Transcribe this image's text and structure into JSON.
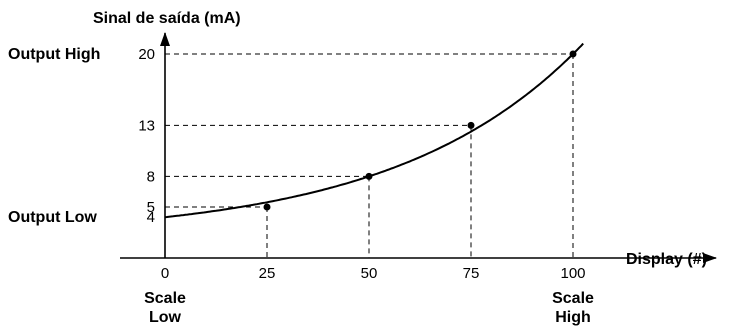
{
  "chart_data": {
    "type": "line",
    "ylabel": "Sinal de saída (mA)",
    "xlabel": "Display (#)",
    "x_ticks": [
      0,
      25,
      50,
      75,
      100
    ],
    "y_ticks": [
      4,
      5,
      8,
      13,
      20
    ],
    "y_tick_labels": [
      {
        "value": 4,
        "label": "Output Low"
      },
      {
        "value": 20,
        "label": "Output High"
      }
    ],
    "x_tick_labels": [
      {
        "value": 0,
        "line1": "Scale",
        "line2": "Low"
      },
      {
        "value": 100,
        "line1": "Scale",
        "line2": "High"
      }
    ],
    "series": [
      {
        "x": [
          0,
          25,
          50,
          75,
          100
        ],
        "y": [
          4,
          5,
          8,
          13,
          20
        ]
      }
    ],
    "marked_points": [
      {
        "x": 25,
        "y": 5
      },
      {
        "x": 50,
        "y": 8
      },
      {
        "x": 75,
        "y": 13
      },
      {
        "x": 100,
        "y": 20
      }
    ],
    "grid": false,
    "xlim": [
      0,
      100
    ],
    "ylim": [
      0,
      20
    ]
  }
}
